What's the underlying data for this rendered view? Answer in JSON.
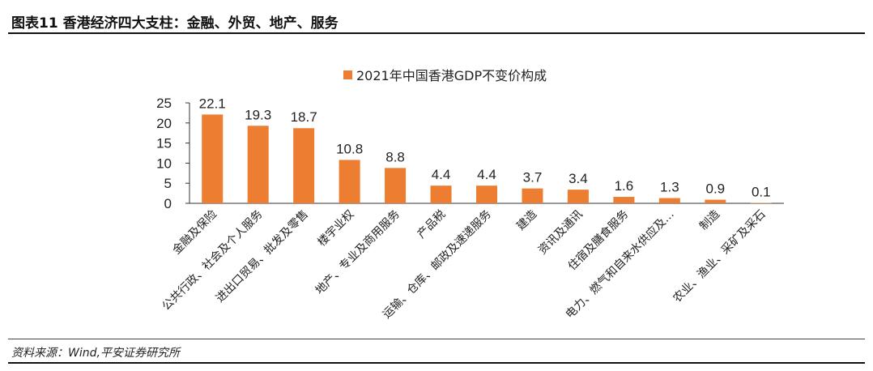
{
  "header": {
    "title": "图表11   香港经济四大支柱：金融、外贸、地产、服务"
  },
  "footer": {
    "source": "资料来源：Wind,平安证券研究所"
  },
  "chart_data": {
    "type": "bar",
    "title": "",
    "legend": "2021年中国香港GDP不变价构成",
    "legend_position": "top-center",
    "color": "#ED7D31",
    "xlabel": "",
    "ylabel": "",
    "ylim": [
      0,
      25
    ],
    "yticks": [
      0,
      5,
      10,
      15,
      20,
      25
    ],
    "grid": false,
    "categories": [
      "金融及保险",
      "公共行政、社会及个人服务",
      "进出口贸易、批发及零售",
      "楼宇业权",
      "地产、专业及商用服务",
      "产品税",
      "运输、仓库、邮政及速递服务",
      "建造",
      "资讯及通讯",
      "住宿及膳食服务",
      "电力、燃气和自来水供应及…",
      "制造",
      "农业、渔业、采矿及采石"
    ],
    "values": [
      22.1,
      19.3,
      18.7,
      10.8,
      8.8,
      4.4,
      4.4,
      3.7,
      3.4,
      1.6,
      1.3,
      0.9,
      0.1
    ],
    "value_labels": [
      "22.1",
      "19.3",
      "18.7",
      "10.8",
      "8.8",
      "4.4",
      "4.4",
      "3.7",
      "3.4",
      "1.6",
      "1.3",
      "0.9",
      "0.1"
    ]
  }
}
